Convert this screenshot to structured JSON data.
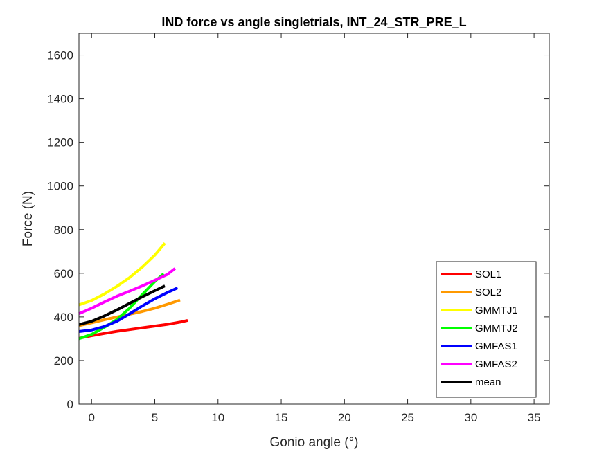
{
  "chart_data": {
    "type": "line",
    "title": "IND force vs angle singletrials, INT_24_STR_PRE_L",
    "xlabel": "Gonio angle (°)",
    "ylabel": "Force (N)",
    "xlim": [
      -1,
      36.2
    ],
    "ylim": [
      0,
      1700
    ],
    "xticks": [
      0,
      5,
      10,
      15,
      20,
      25,
      30,
      35
    ],
    "yticks": [
      0,
      200,
      400,
      600,
      800,
      1000,
      1200,
      1400,
      1600
    ],
    "grid": false,
    "legend_position": "bottom-right",
    "series": [
      {
        "name": "SOL1",
        "color": "#ff0000",
        "x": [
          -1,
          0,
          1,
          2,
          3,
          4,
          5,
          6,
          7,
          7.6
        ],
        "y": [
          302,
          314,
          324,
          334,
          342,
          350,
          358,
          366,
          376,
          384
        ]
      },
      {
        "name": "SOL2",
        "color": "#ff9900",
        "x": [
          -1,
          0,
          1,
          2,
          3,
          4,
          5,
          6,
          7
        ],
        "y": [
          360,
          373,
          387,
          400,
          412,
          425,
          440,
          458,
          477
        ]
      },
      {
        "name": "GMMTJ1",
        "color": "#ffff00",
        "x": [
          -1,
          0,
          1,
          2,
          3,
          4,
          5,
          5.8
        ],
        "y": [
          455,
          475,
          505,
          540,
          580,
          628,
          683,
          738
        ]
      },
      {
        "name": "GMMTJ2",
        "color": "#00ff00",
        "x": [
          -1,
          0,
          1,
          2,
          3,
          4,
          5,
          5.7
        ],
        "y": [
          300,
          320,
          352,
          388,
          440,
          502,
          562,
          598
        ]
      },
      {
        "name": "GMFAS1",
        "color": "#0000ff",
        "x": [
          -1,
          0,
          1,
          2,
          3,
          4,
          5,
          6,
          6.8
        ],
        "y": [
          333,
          340,
          356,
          380,
          414,
          450,
          483,
          512,
          533
        ]
      },
      {
        "name": "GMFAS2",
        "color": "#ff00ff",
        "x": [
          -1,
          0,
          1,
          2,
          3,
          4,
          5,
          6,
          6.6
        ],
        "y": [
          415,
          440,
          468,
          495,
          518,
          542,
          568,
          595,
          622
        ]
      },
      {
        "name": "mean",
        "color": "#000000",
        "x": [
          -1,
          0,
          1,
          2,
          3,
          4,
          5,
          5.8
        ],
        "y": [
          365,
          380,
          404,
          432,
          462,
          492,
          520,
          542
        ]
      }
    ]
  }
}
